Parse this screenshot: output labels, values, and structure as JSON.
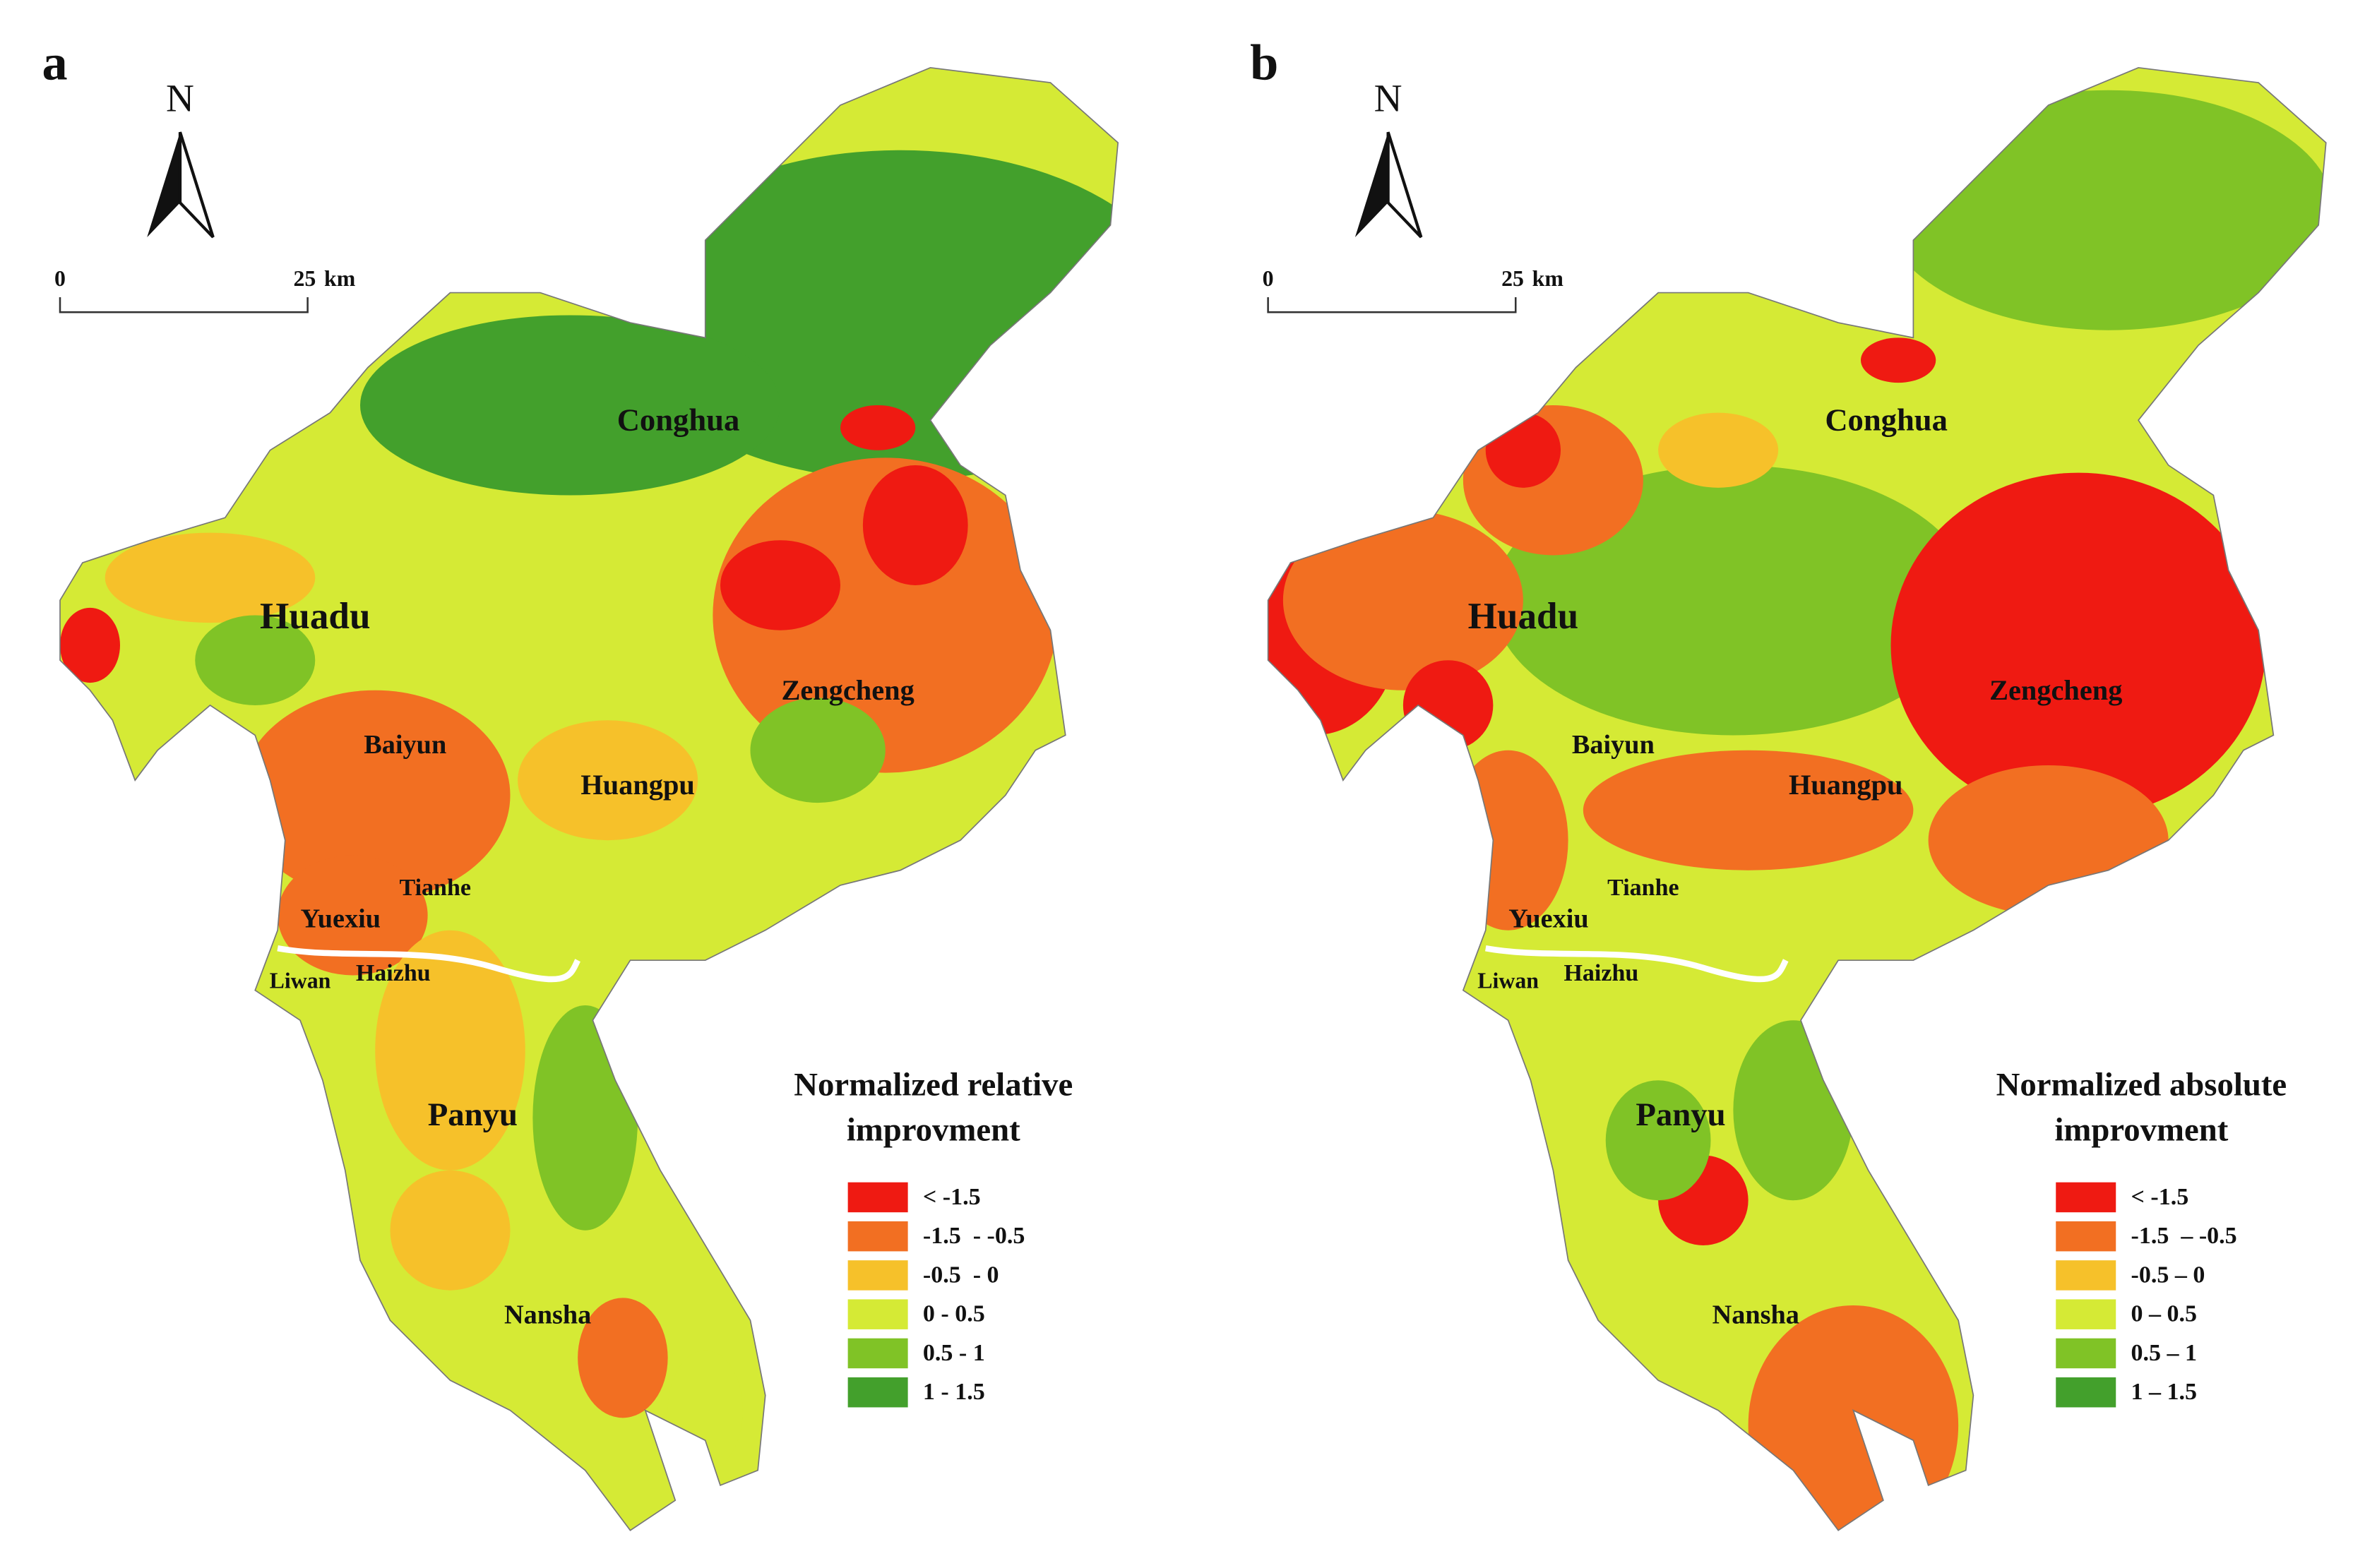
{
  "panels": [
    {
      "label": "a",
      "north": "N",
      "scale": {
        "start": "0",
        "end": "25",
        "unit": "km"
      },
      "districts": [
        "Conghua",
        "Huadu",
        "Zengcheng",
        "Baiyun",
        "Huangpu",
        "Tianhe",
        "Yuexiu",
        "Liwan",
        "Haizhu",
        "Panyu",
        "Nansha"
      ],
      "legend": {
        "title": [
          "Normalized relative",
          "improvment"
        ],
        "entries": [
          {
            "label": "< -1.5",
            "color": "#ef1a12"
          },
          {
            "label": "-1.5  - -0.5",
            "color": "#f26f22"
          },
          {
            "label": "-0.5  - 0",
            "color": "#f6c12a"
          },
          {
            "label": "0 - 0.5",
            "color": "#d5ea35"
          },
          {
            "label": "0.5 - 1",
            "color": "#80c326"
          },
          {
            "label": "1 - 1.5",
            "color": "#43a02c"
          }
        ]
      }
    },
    {
      "label": "b",
      "north": "N",
      "scale": {
        "start": "0",
        "end": "25",
        "unit": "km"
      },
      "districts": [
        "Conghua",
        "Huadu",
        "Zengcheng",
        "Baiyun",
        "Huangpu",
        "Tianhe",
        "Yuexiu",
        "Liwan",
        "Haizhu",
        "Panyu",
        "Nansha"
      ],
      "legend": {
        "title": [
          "Normalized absolute",
          "improvment"
        ],
        "entries": [
          {
            "label": "< -1.5",
            "color": "#ef1a12"
          },
          {
            "label": "-1.5  – -0.5",
            "color": "#f26f22"
          },
          {
            "label": "-0.5 – 0",
            "color": "#f6c12a"
          },
          {
            "label": "0 – 0.5",
            "color": "#d5ea35"
          },
          {
            "label": "0.5 – 1",
            "color": "#80c326"
          },
          {
            "label": "1 – 1.5",
            "color": "#43a02c"
          }
        ]
      }
    }
  ]
}
